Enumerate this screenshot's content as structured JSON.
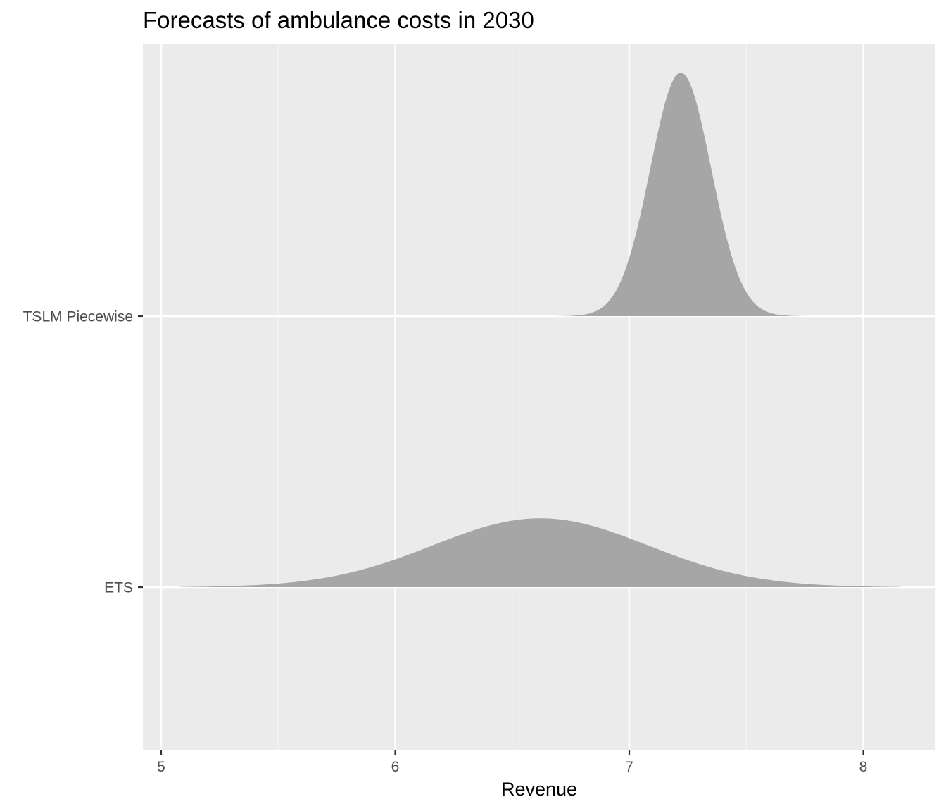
{
  "chart_data": {
    "type": "area",
    "subtype": "ridgeline-density",
    "title": "Forecasts of ambulance costs in 2030",
    "xlabel": "Revenue",
    "ylabel": "",
    "xlim": [
      4.92,
      8.31
    ],
    "x_ticks": [
      "5",
      "6",
      "7",
      "8"
    ],
    "x_tick_values": [
      5,
      6,
      7,
      8
    ],
    "categories": [
      "ETS",
      "TSLM Piecewise"
    ],
    "grid": true,
    "legend": "none",
    "fill_color": "#a6a6a6",
    "series": [
      {
        "name": "ETS",
        "distribution": "normal",
        "mean": 6.62,
        "sd": 0.46,
        "x_range": [
          5.08,
          8.16
        ]
      },
      {
        "name": "TSLM Piecewise",
        "distribution": "normal",
        "mean": 7.22,
        "sd": 0.13,
        "x_range": [
          6.65,
          7.79
        ]
      }
    ]
  },
  "colors": {
    "panel_background": "#ebebeb",
    "grid_major": "#ffffff",
    "grid_minor": "#f5f5f5",
    "density_fill": "#a6a6a6",
    "tick_label": "#4d4d4d",
    "tick_mark": "#333333"
  }
}
